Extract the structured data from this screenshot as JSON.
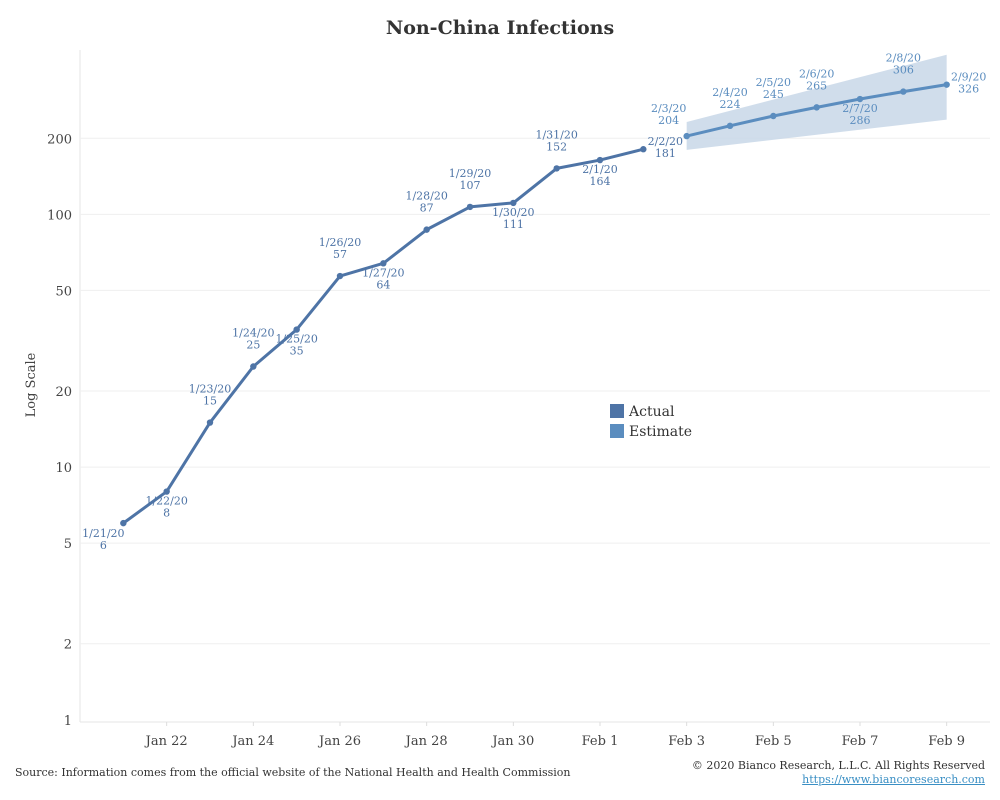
{
  "chart_data": {
    "type": "line",
    "title": "Non-China Infections",
    "ylabel": "Log Scale",
    "xlabel": "",
    "yscale": "log",
    "ylim": [
      0.98,
      447
    ],
    "xlim": [
      "2020-01-20",
      "2020-02-10"
    ],
    "grid": true,
    "y_ticks": [
      1,
      2,
      5,
      10,
      20,
      50,
      100,
      200
    ],
    "x_ticks": [
      {
        "date": "2020-01-22",
        "label": "Jan 22"
      },
      {
        "date": "2020-01-24",
        "label": "Jan 24"
      },
      {
        "date": "2020-01-26",
        "label": "Jan 26"
      },
      {
        "date": "2020-01-28",
        "label": "Jan 28"
      },
      {
        "date": "2020-01-30",
        "label": "Jan 30"
      },
      {
        "date": "2020-02-01",
        "label": "Feb 1"
      },
      {
        "date": "2020-02-03",
        "label": "Feb 3"
      },
      {
        "date": "2020-02-05",
        "label": "Feb 5"
      },
      {
        "date": "2020-02-07",
        "label": "Feb 7"
      },
      {
        "date": "2020-02-09",
        "label": "Feb 9"
      }
    ],
    "legend_position": "center-right",
    "series": [
      {
        "name": "Actual",
        "color": "#4e74a6",
        "points": [
          {
            "x": "2020-01-21",
            "label": "1/21/20",
            "y": 6
          },
          {
            "x": "2020-01-22",
            "label": "1/22/20",
            "y": 8
          },
          {
            "x": "2020-01-23",
            "label": "1/23/20",
            "y": 15
          },
          {
            "x": "2020-01-24",
            "label": "1/24/20",
            "y": 25
          },
          {
            "x": "2020-01-25",
            "label": "1/25/20",
            "y": 35
          },
          {
            "x": "2020-01-26",
            "label": "1/26/20",
            "y": 57
          },
          {
            "x": "2020-01-27",
            "label": "1/27/20",
            "y": 64
          },
          {
            "x": "2020-01-28",
            "label": "1/28/20",
            "y": 87
          },
          {
            "x": "2020-01-29",
            "label": "1/29/20",
            "y": 107
          },
          {
            "x": "2020-01-30",
            "label": "1/30/20",
            "y": 111
          },
          {
            "x": "2020-01-31",
            "label": "1/31/20",
            "y": 152
          },
          {
            "x": "2020-02-01",
            "label": "2/1/20",
            "y": 164
          },
          {
            "x": "2020-02-02",
            "label": "2/2/20",
            "y": 181
          }
        ]
      },
      {
        "name": "Estimate",
        "color": "#5b8dbf",
        "band_color": "#c8d7e7",
        "band": [
          {
            "x": "2020-02-03",
            "low": 180,
            "high": 232
          },
          {
            "x": "2020-02-09",
            "low": 237,
            "high": 428
          }
        ],
        "points": [
          {
            "x": "2020-02-03",
            "label": "2/3/20",
            "y": 204
          },
          {
            "x": "2020-02-04",
            "label": "2/4/20",
            "y": 224
          },
          {
            "x": "2020-02-05",
            "label": "2/5/20",
            "y": 245
          },
          {
            "x": "2020-02-06",
            "label": "2/6/20",
            "y": 265
          },
          {
            "x": "2020-02-07",
            "label": "2/7/20",
            "y": 286
          },
          {
            "x": "2020-02-08",
            "label": "2/8/20",
            "y": 306
          },
          {
            "x": "2020-02-09",
            "label": "2/9/20",
            "y": 326
          }
        ]
      }
    ]
  },
  "footer": {
    "source": "Source: Information comes from the official website of the National Health and Health Commission",
    "copyright": "© 2020 Bianco Research, L.L.C. All Rights Reserved",
    "link": "https://www.biancoresearch.com"
  }
}
